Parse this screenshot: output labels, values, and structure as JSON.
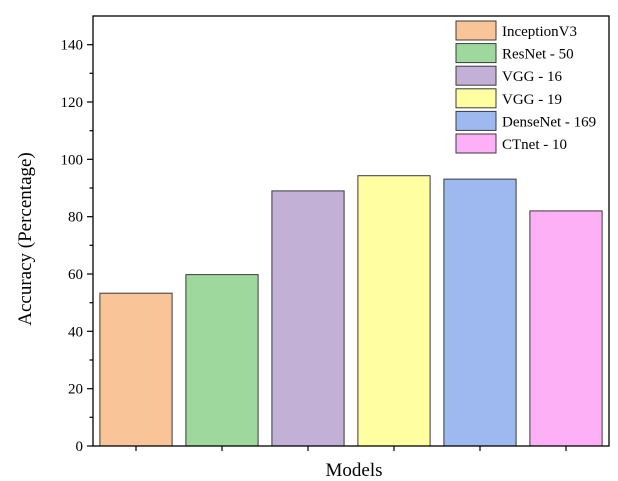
{
  "chart_data": {
    "type": "bar",
    "categories": [
      "InceptionV3",
      "ResNet - 50",
      "VGG - 16",
      "VGG - 19",
      "DenseNet - 169",
      "CTnet - 10"
    ],
    "values": [
      53.3,
      59.8,
      89,
      94.3,
      93.1,
      82
    ],
    "colors": [
      "#F9C598",
      "#9FD89D",
      "#C3B0D6",
      "#FFFEA0",
      "#9EB9F0",
      "#FDB0F6"
    ],
    "title": "",
    "xlabel": "Models",
    "ylabel": "Accuracy (Percentage)",
    "ylim": [
      0,
      150
    ],
    "yticks": [
      "0",
      "20",
      "40",
      "60",
      "80",
      "100",
      "120",
      "140"
    ],
    "grid": false,
    "legend": {
      "position": "top-right",
      "entries": [
        "InceptionV3",
        "ResNet - 50",
        "VGG - 16",
        "VGG - 19",
        "DenseNet - 169",
        "CTnet - 10"
      ]
    }
  }
}
